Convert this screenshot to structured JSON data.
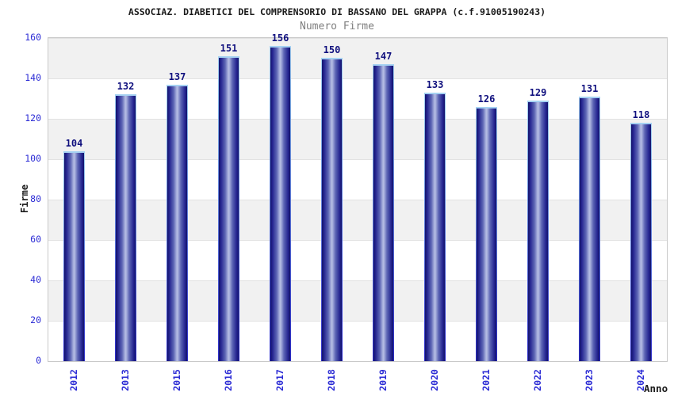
{
  "chart_data": {
    "type": "bar",
    "title": "ASSOCIAZ. DIABETICI DEL COMPRENSORIO DI BASSANO DEL GRAPPA (c.f.91005190243)",
    "subtitle": "Numero Firme",
    "xlabel": "Anno",
    "ylabel": "Firme",
    "categories": [
      "2012",
      "2013",
      "2015",
      "2016",
      "2017",
      "2018",
      "2019",
      "2020",
      "2021",
      "2022",
      "2023",
      "2024"
    ],
    "values": [
      104,
      132,
      137,
      151,
      156,
      150,
      147,
      133,
      126,
      129,
      131,
      118
    ],
    "series_name": "Numero Firme",
    "ylim": [
      0,
      160
    ],
    "yticks": [
      0,
      20,
      40,
      60,
      80,
      100,
      120,
      140,
      160
    ],
    "grid": "horizontal-bands-alternating",
    "legend": "none",
    "bar_labels_shown": true
  },
  "colors": {
    "bar_edge_dark": "#14146a",
    "bar_body": "#23238f",
    "bar_highlight": "#b6bde4",
    "bar_outline_top": "#a6d2f2",
    "bar_outline_bottom": "#2a2ac8",
    "value_label": "#10107e",
    "tick_label": "#2b2bd5",
    "title": "#1a1a1a",
    "subtitle": "#7f7f7f",
    "band_gray": "#f1f1f1",
    "band_white": "#ffffff",
    "plot_border": "#c9c9c9",
    "background": "#ffffff"
  }
}
